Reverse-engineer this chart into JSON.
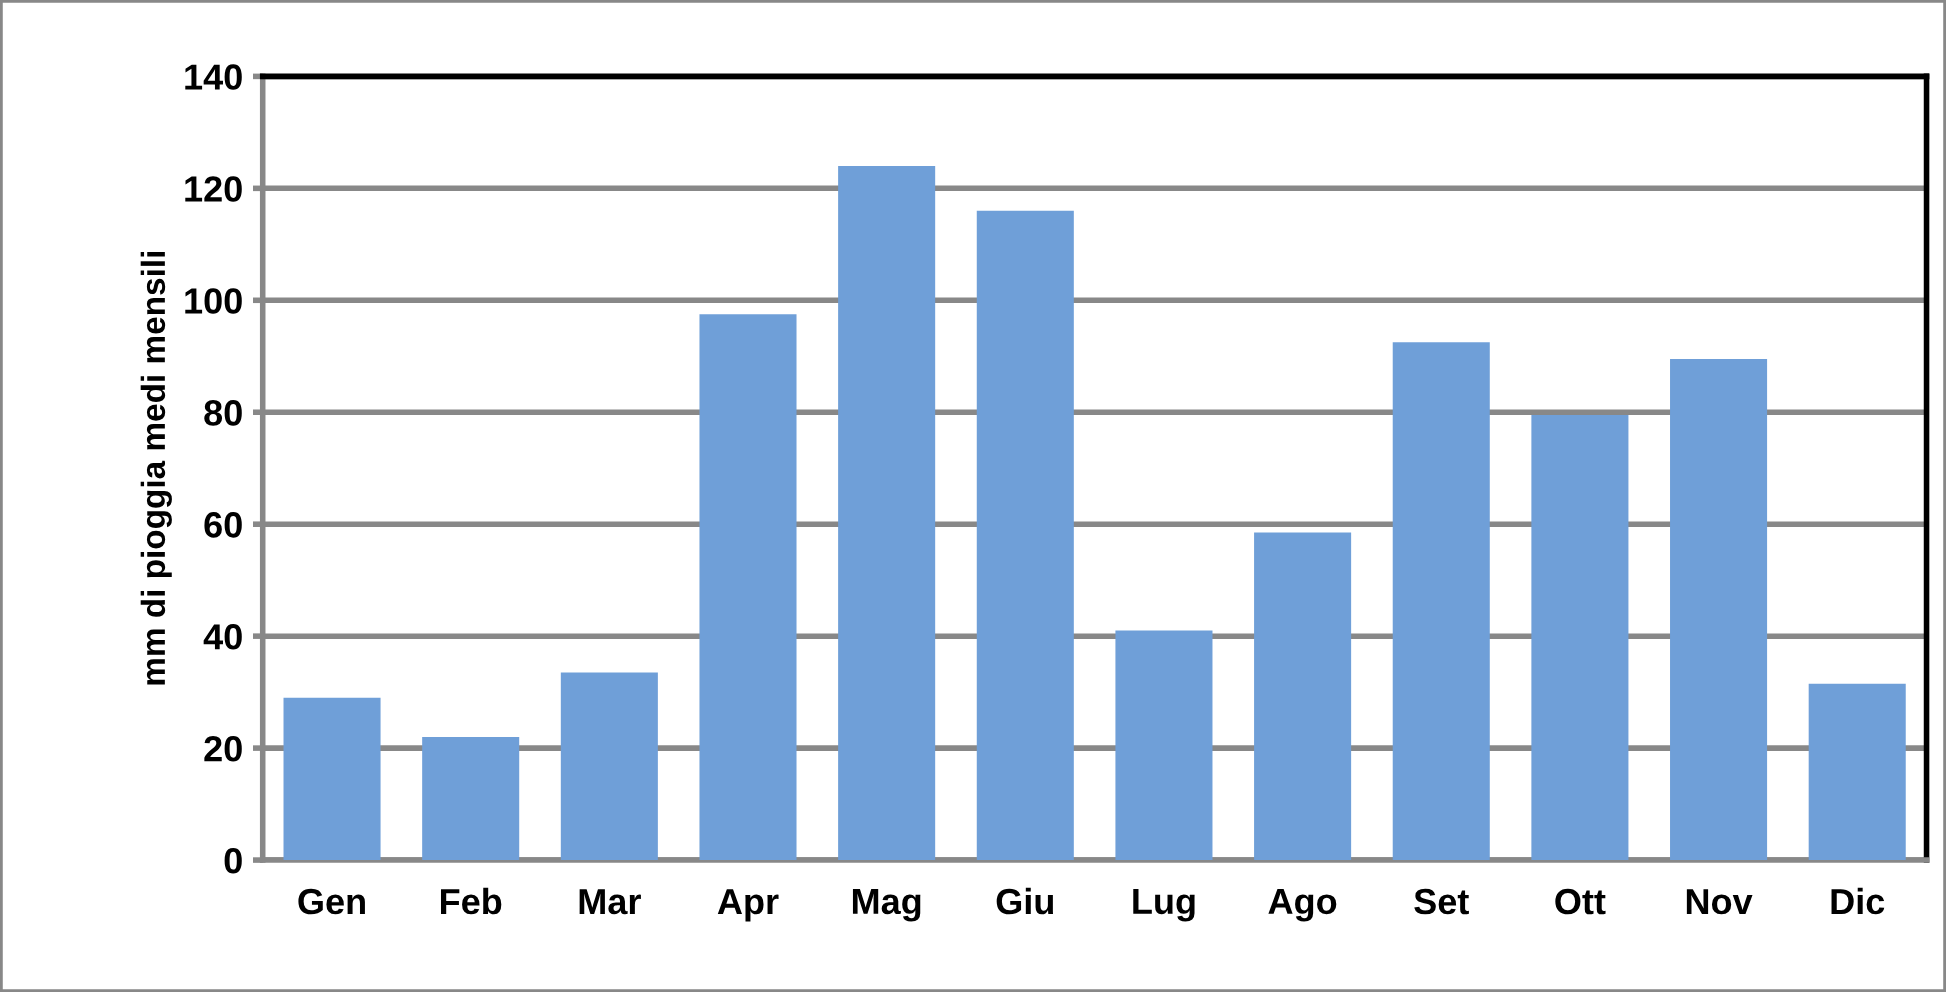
{
  "chart_data": {
    "type": "bar",
    "ylabel": "mm di pioggia medi mensili",
    "categories": [
      "Gen",
      "Feb",
      "Mar",
      "Apr",
      "Mag",
      "Giu",
      "Lug",
      "Ago",
      "Set",
      "Ott",
      "Nov",
      "Dic"
    ],
    "values": [
      29,
      22,
      33.5,
      97.5,
      124,
      116,
      41,
      58.5,
      92.5,
      79.5,
      89.5,
      31.5
    ],
    "color": "#6f9fd8",
    "ylim": [
      0,
      140
    ],
    "yticks": [
      0,
      20,
      40,
      60,
      80,
      100,
      120,
      140
    ],
    "grid": "y"
  }
}
